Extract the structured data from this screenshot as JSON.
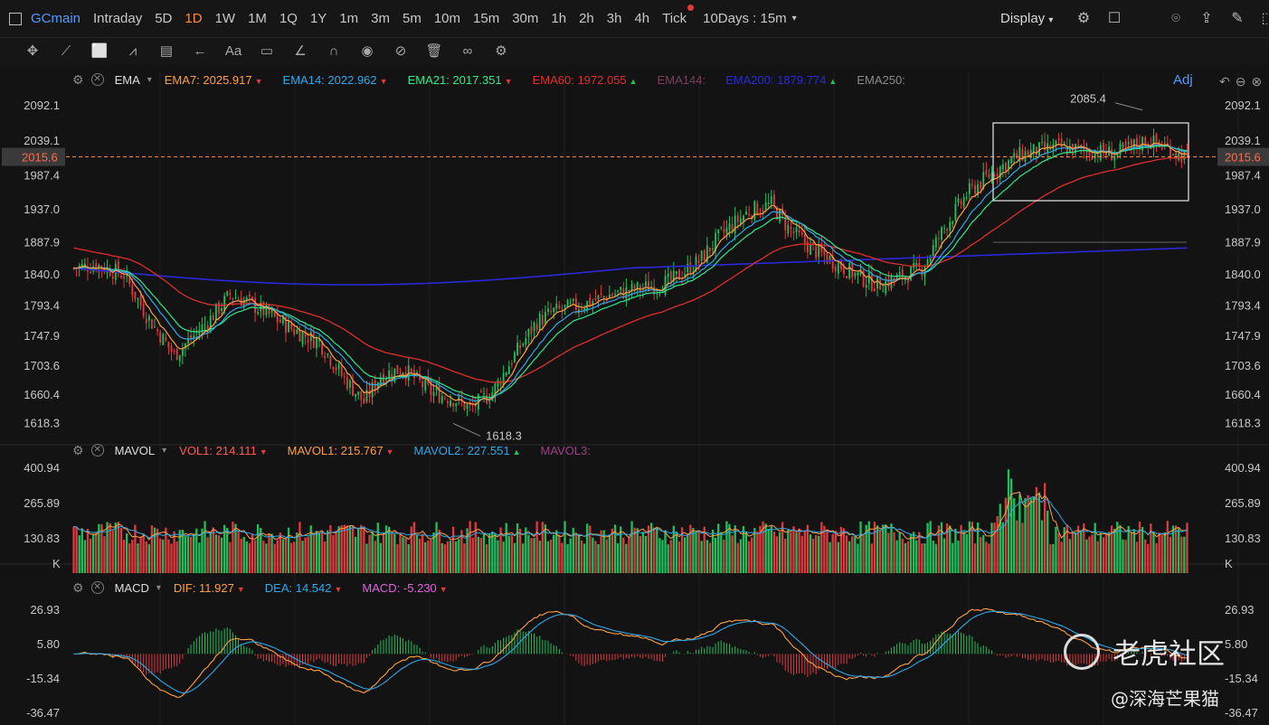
{
  "topbar": {
    "symbol": "GCmain",
    "timeframes": [
      "Intraday",
      "5D",
      "1D",
      "1W",
      "1M",
      "1Q",
      "1Y",
      "1m",
      "3m",
      "5m",
      "10m",
      "15m",
      "30m",
      "1h",
      "2h",
      "3h",
      "4h",
      "Tick"
    ],
    "active_timeframe": "1D",
    "period_label": "10Days : 15m",
    "display_label": "Display"
  },
  "main_legend": {
    "indicator": "EMA",
    "items": [
      {
        "label": "EMA7:",
        "value": "2025.917",
        "color": "#ff9f43",
        "trend": "down"
      },
      {
        "label": "EMA14:",
        "value": "2022.962",
        "color": "#2fa8e8",
        "trend": "down"
      },
      {
        "label": "EMA21:",
        "value": "2017.351",
        "color": "#2ee88a",
        "trend": "down"
      },
      {
        "label": "EMA60:",
        "value": "1972.055",
        "color": "#e02d2d",
        "trend": "up"
      },
      {
        "label": "EMA144:",
        "value": "",
        "color": "#7a3f5a",
        "trend": ""
      },
      {
        "label": "EMA200:",
        "value": "1879.774",
        "color": "#2a2ad8",
        "trend": "up"
      },
      {
        "label": "EMA250:",
        "value": "",
        "color": "#8a8a8a",
        "trend": ""
      }
    ],
    "adj_label": "Adj"
  },
  "price_axis": {
    "ticks": [
      "2092.1",
      "2039.1",
      "1987.4",
      "1937.0",
      "1887.9",
      "1840.0",
      "1793.4",
      "1747.9",
      "1703.6",
      "1660.4",
      "1618.3"
    ],
    "current_price": "2015.6",
    "high_label": "2085.4",
    "low_label": "1618.3"
  },
  "vol_legend": {
    "indicator": "MAVOL",
    "items": [
      {
        "label": "VOL1:",
        "value": "214.111",
        "color": "#ff5a5a",
        "trend": "down"
      },
      {
        "label": "MAVOL1:",
        "value": "215.767",
        "color": "#ff9f43",
        "trend": "down"
      },
      {
        "label": "MAVOL2:",
        "value": "227.551",
        "color": "#2fa8e8",
        "trend": "up"
      },
      {
        "label": "MAVOL3:",
        "value": "",
        "color": "#9b3f8a",
        "trend": ""
      }
    ]
  },
  "vol_axis": {
    "ticks": [
      "400.94",
      "265.89",
      "130.83"
    ],
    "unit": "K"
  },
  "macd_legend": {
    "indicator": "MACD",
    "items": [
      {
        "label": "DIF:",
        "value": "11.927",
        "color": "#ff9f43",
        "trend": "down"
      },
      {
        "label": "DEA:",
        "value": "14.542",
        "color": "#2fa8e8",
        "trend": "down"
      },
      {
        "label": "MACD:",
        "value": "-5.230",
        "color": "#e060e0",
        "trend": "down"
      }
    ]
  },
  "macd_axis": {
    "ticks": [
      "26.93",
      "5.80",
      "-15.34",
      "-36.47"
    ]
  },
  "watermark": {
    "brand": "老虎社区",
    "author": "@深海芒果猫"
  },
  "colors": {
    "up": "#1fbf5c",
    "down": "#e0393e",
    "background": "#131313",
    "accent": "#4e9bff",
    "current": "#ff8a3c"
  },
  "chart_data": {
    "type": "line",
    "price_waypoints": [
      [
        0,
        1850
      ],
      [
        8,
        1855
      ],
      [
        18,
        1840
      ],
      [
        26,
        1780
      ],
      [
        36,
        1720
      ],
      [
        42,
        1745
      ],
      [
        48,
        1770
      ],
      [
        56,
        1810
      ],
      [
        62,
        1800
      ],
      [
        70,
        1780
      ],
      [
        80,
        1755
      ],
      [
        88,
        1740
      ],
      [
        96,
        1690
      ],
      [
        104,
        1650
      ],
      [
        110,
        1690
      ],
      [
        118,
        1700
      ],
      [
        128,
        1665
      ],
      [
        136,
        1655
      ],
      [
        142,
        1640
      ],
      [
        150,
        1665
      ],
      [
        158,
        1720
      ],
      [
        166,
        1770
      ],
      [
        172,
        1785
      ],
      [
        182,
        1795
      ],
      [
        192,
        1810
      ],
      [
        204,
        1820
      ],
      [
        214,
        1830
      ],
      [
        224,
        1860
      ],
      [
        232,
        1900
      ],
      [
        242,
        1935
      ],
      [
        250,
        1945
      ],
      [
        256,
        1910
      ],
      [
        264,
        1880
      ],
      [
        272,
        1860
      ],
      [
        280,
        1840
      ],
      [
        288,
        1825
      ],
      [
        296,
        1835
      ],
      [
        304,
        1850
      ],
      [
        312,
        1910
      ],
      [
        320,
        1960
      ],
      [
        330,
        1995
      ],
      [
        340,
        2020
      ],
      [
        352,
        2030
      ],
      [
        362,
        2025
      ],
      [
        374,
        2020
      ],
      [
        384,
        2040
      ],
      [
        392,
        2030
      ],
      [
        398,
        2015.6
      ]
    ],
    "price_high": 2085.4,
    "price_low": 1618.3,
    "current_price": 2015.6,
    "bars": 400,
    "volume_peak": 400.94,
    "macd_range": [
      -36.47,
      26.93
    ]
  }
}
